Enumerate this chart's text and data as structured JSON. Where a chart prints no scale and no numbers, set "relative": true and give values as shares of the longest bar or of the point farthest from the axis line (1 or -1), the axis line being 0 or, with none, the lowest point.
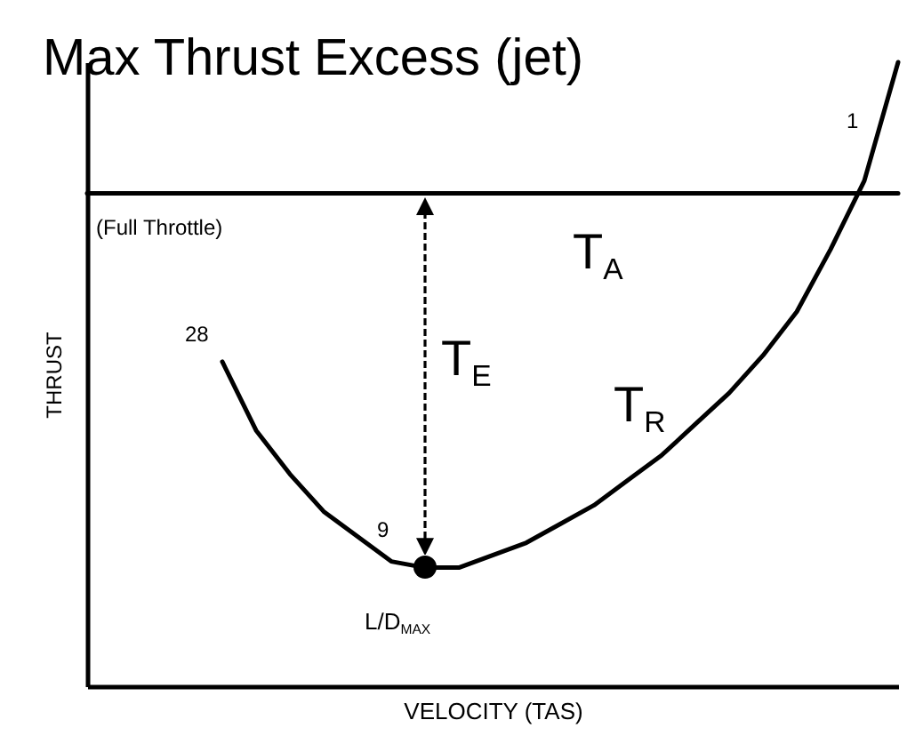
{
  "chart_data": {
    "type": "line",
    "relative": true,
    "title": "Max Thrust  Excess (jet)",
    "xlabel": "VELOCITY (TAS)",
    "ylabel": "THRUST",
    "categories": [
      null,
      null,
      null,
      null,
      null,
      null,
      null,
      null,
      null,
      null,
      null,
      null,
      null,
      null,
      null,
      null,
      null,
      null,
      null,
      null,
      null,
      null,
      null,
      null,
      null
    ],
    "series": [
      {
        "name": "T$_{A}$",
        "color": "#000000",
        "values": [
          0.79,
          0.79,
          0.79,
          0.79,
          0.79,
          0.79,
          0.79,
          0.79,
          0.79,
          0.79,
          0.79,
          0.79,
          0.79,
          0.79,
          0.79,
          0.79,
          0.79,
          0.79,
          0.79,
          0.79,
          0.79,
          0.79,
          0.79,
          0.79,
          0.79
        ]
      },
      {
        "name": "T$_{R}$",
        "color": "#000000",
        "values": [
          null,
          null,
          null,
          null,
          0.52,
          0.41,
          0.34,
          0.28,
          0.24,
          0.2,
          0.19,
          0.19,
          0.21,
          0.23,
          0.26,
          0.29,
          0.33,
          0.37,
          0.42,
          0.47,
          0.53,
          0.6,
          0.7,
          0.81,
          1
        ]
      }
    ],
    "annotations": [
      "(Full Throttle)",
      "T$_{E}$",
      "28",
      "9",
      "1",
      "L/D$_{MAX}$"
    ]
  }
}
